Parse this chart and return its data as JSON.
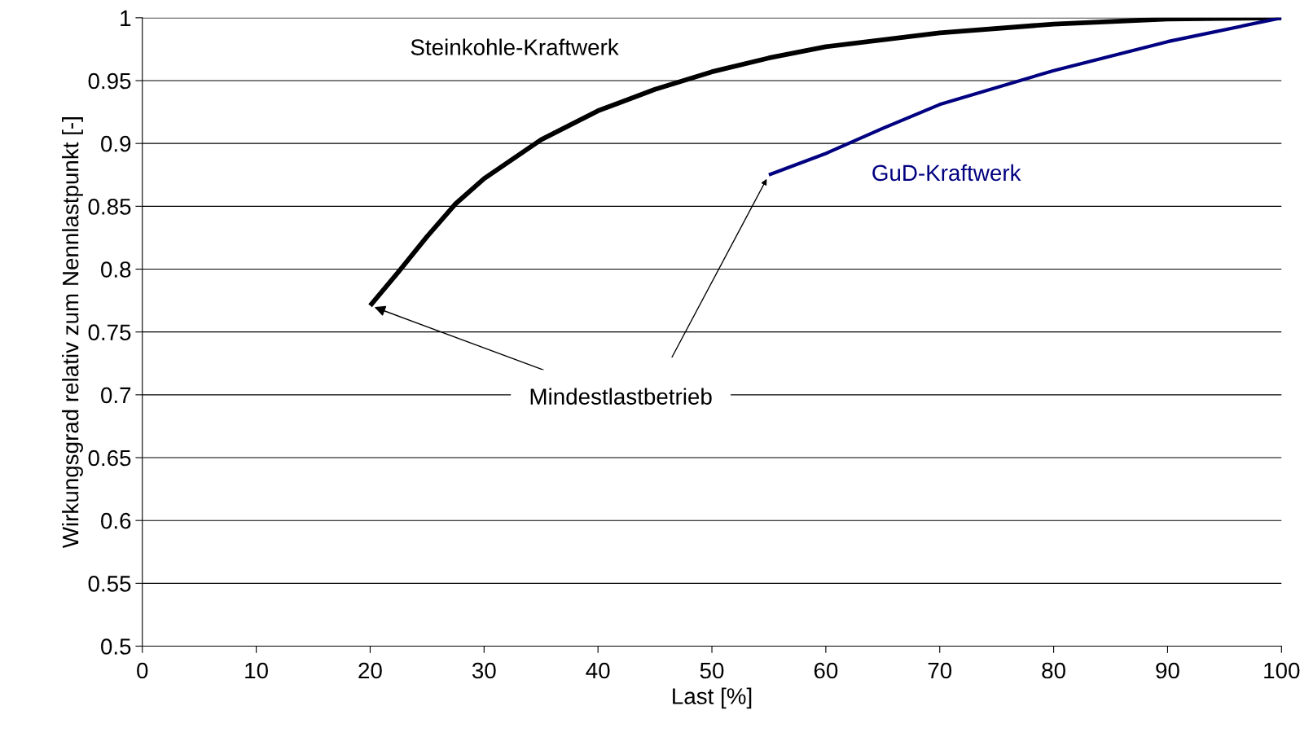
{
  "chart_data": {
    "type": "line",
    "xlabel": "Last [%]",
    "ylabel": "Wirkungsgrad relativ zum Nennlastpunkt [-]",
    "xlim": [
      0,
      100
    ],
    "xticks": [
      0,
      10,
      20,
      30,
      40,
      50,
      60,
      70,
      80,
      90,
      100
    ],
    "ylim": [
      0.5,
      1
    ],
    "yticks": [
      {
        "value": 0.5,
        "label": "0.5"
      },
      0.55,
      {
        "value": 0.6,
        "label": "0.6"
      },
      0.65,
      {
        "value": 0.7,
        "label": "0.7"
      },
      0.75,
      {
        "value": 0.8,
        "label": "0.8"
      },
      0.85,
      {
        "value": 0.9,
        "label": "0.9"
      },
      0.95,
      {
        "value": 1,
        "label": "1"
      }
    ],
    "grid": "y",
    "legend": false,
    "marker": "none",
    "line_style": "solid",
    "series": [
      {
        "name": "Steinkohle-Kraftwerk",
        "color": "#000000",
        "x": [
          20,
          22.5,
          25,
          27.5,
          30,
          35,
          40,
          45,
          50,
          55,
          60,
          70,
          80,
          90,
          100
        ],
        "values": [
          0.771,
          0.798,
          0.826,
          0.852,
          0.872,
          0.903,
          0.926,
          0.943,
          0.957,
          0.968,
          0.977,
          0.988,
          0.995,
          0.999,
          1.0
        ]
      },
      {
        "name": "GuD-Kraftwerk",
        "color": "#000080",
        "x": [
          55,
          60,
          65,
          70,
          80,
          90,
          100
        ],
        "values": [
          0.875,
          0.892,
          0.912,
          0.931,
          0.958,
          0.981,
          1.0
        ]
      }
    ],
    "annotations": [
      {
        "text": "Mindestlastbetrieb",
        "x": 20,
        "y": 0.771
      }
    ]
  }
}
